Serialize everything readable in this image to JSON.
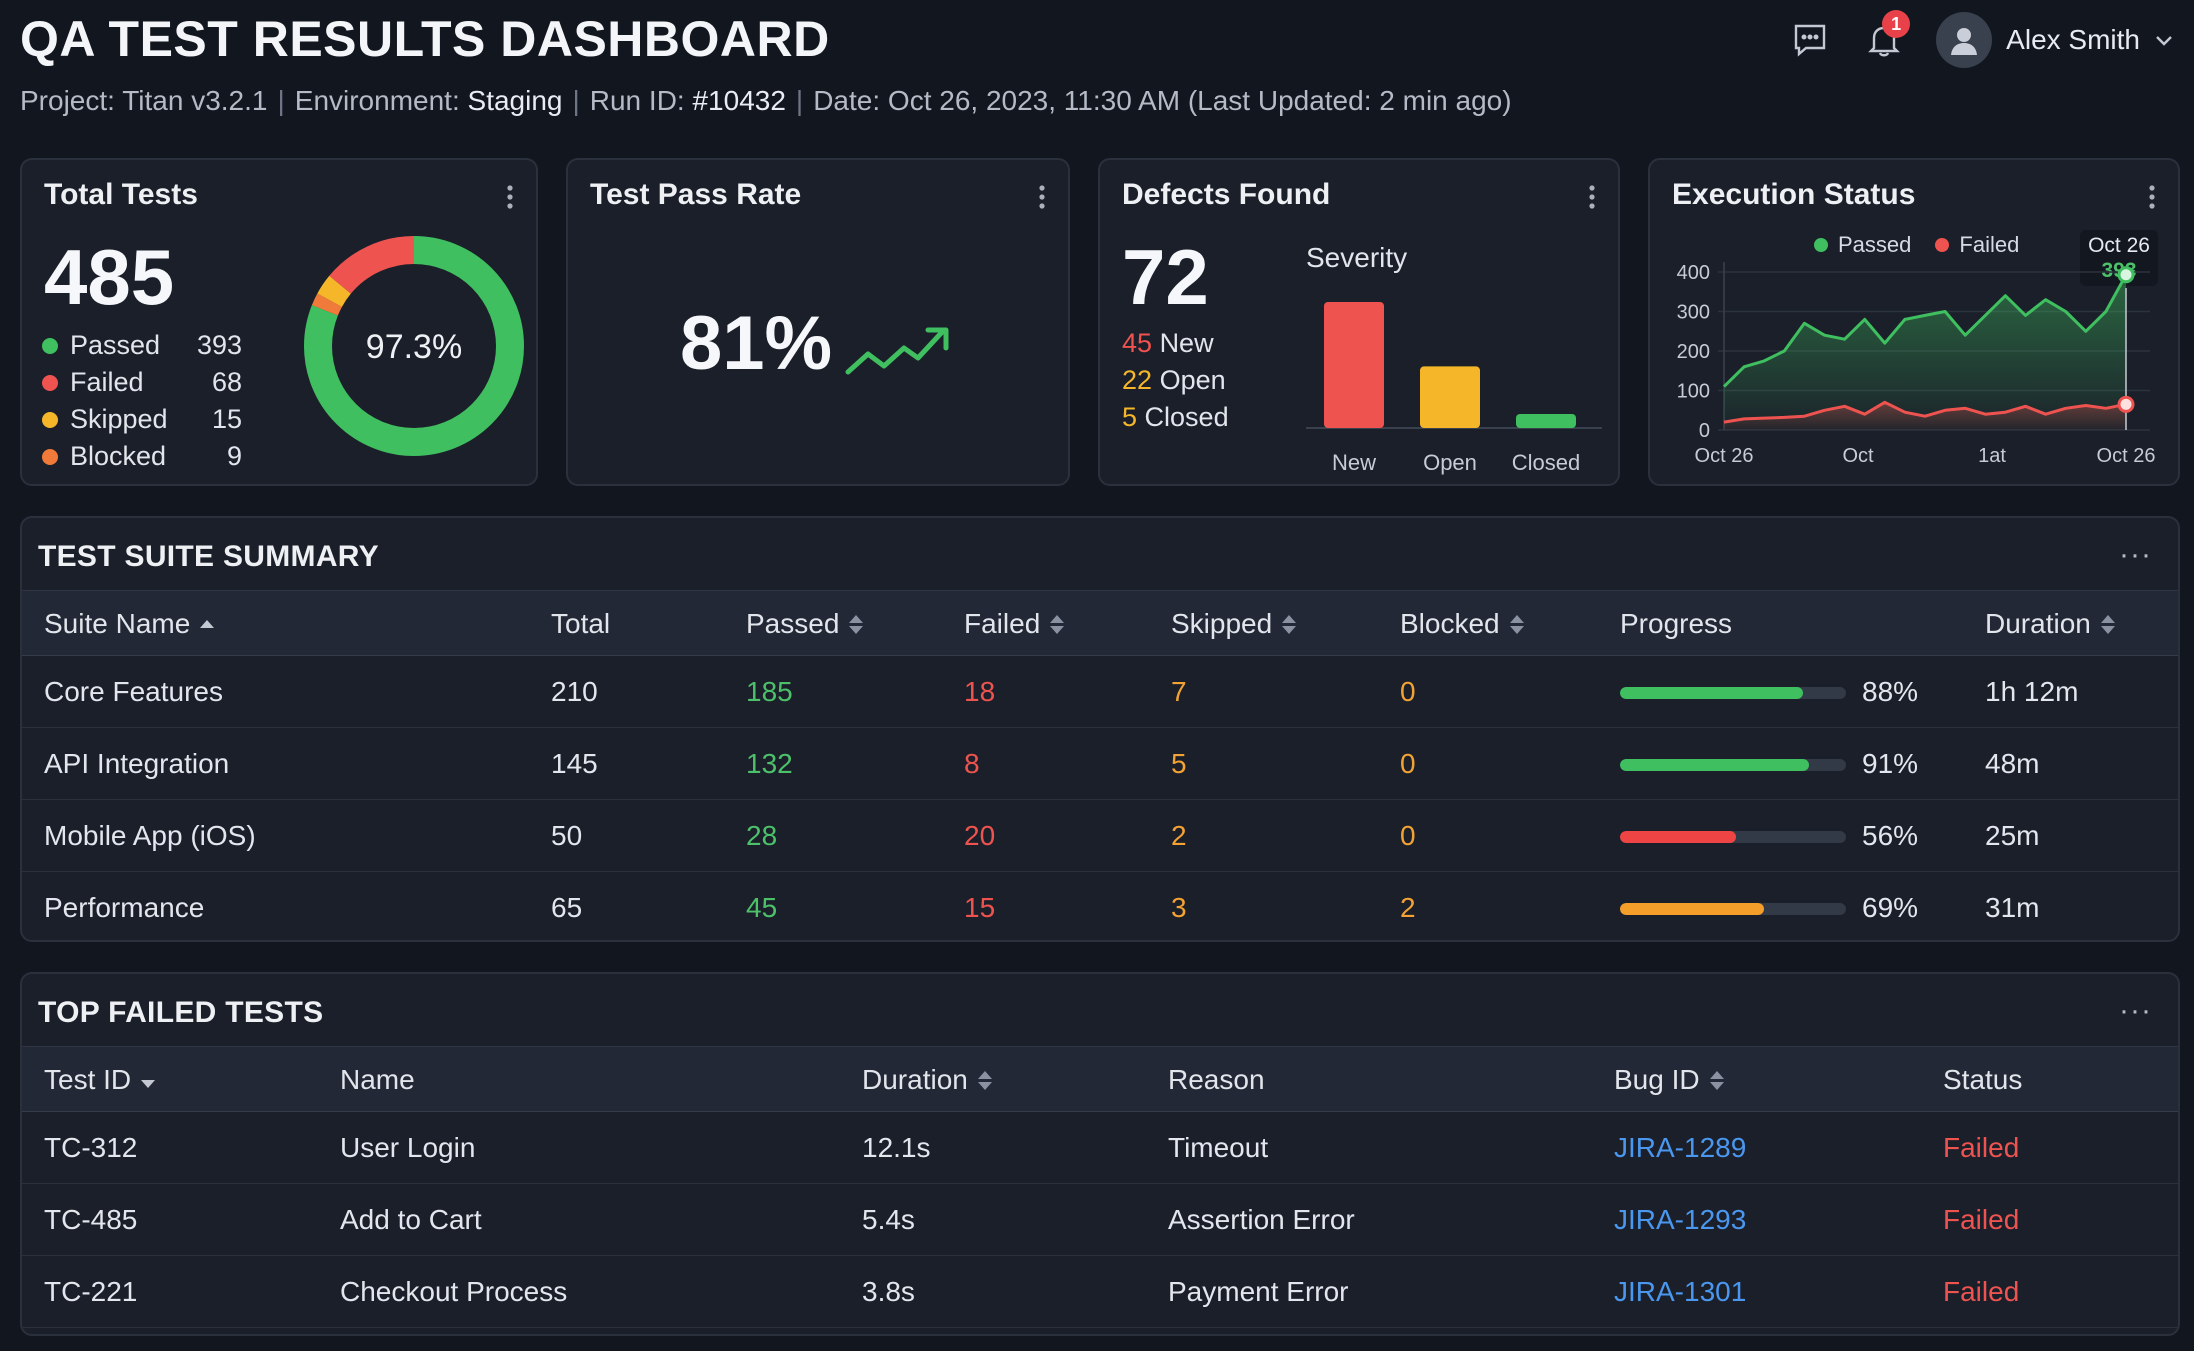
{
  "header": {
    "title": "QA TEST RESULTS DASHBOARD",
    "project_label": "Project:",
    "project": "Titan v3.2.1",
    "env_label": "Environment:",
    "environment": "Staging",
    "run_label": "Run ID:",
    "run_id": "#10432",
    "date_label": "Date:",
    "date": "Oct 26, 2023, 11:30 AM (Last Updated: 2 min ago)",
    "notification_count": "1",
    "user_name": "Alex Smith",
    "icons": [
      "chat-icon",
      "bell-icon",
      "user-avatar-icon",
      "chevron-down-icon"
    ]
  },
  "colors": {
    "passed": "#3fbf5f",
    "failed": "#ef5350",
    "skipped": "#f5b62a",
    "blocked": "#f07a3a",
    "link": "#4b97ef"
  },
  "total_tests": {
    "title": "Total Tests",
    "total": "485",
    "donut_label": "97.3%",
    "items": [
      {
        "label": "Passed",
        "value": "393"
      },
      {
        "label": "Failed",
        "value": "68"
      },
      {
        "label": "Skipped",
        "value": "15"
      },
      {
        "label": "Blocked",
        "value": "9"
      }
    ]
  },
  "pass_rate": {
    "title": "Test Pass Rate",
    "value": "81%"
  },
  "defects": {
    "title": "Defects Found",
    "total": "72",
    "chart_title": "Severity",
    "items": [
      {
        "count": "45",
        "label": "New"
      },
      {
        "count": "22",
        "label": "Open"
      },
      {
        "count": "5",
        "label": "Closed"
      }
    ]
  },
  "execution": {
    "title": "Execution Status",
    "legend_passed": "Passed",
    "legend_failed": "Failed",
    "tooltip_date": "Oct 26",
    "tooltip_value": "393"
  },
  "chart_data": [
    {
      "type": "pie",
      "categories": [
        "Passed",
        "Failed",
        "Skipped",
        "Blocked"
      ],
      "values": [
        393,
        68,
        15,
        9
      ],
      "center_label": "97.3%"
    },
    {
      "type": "bar",
      "title": "Severity",
      "categories": [
        "New",
        "Open",
        "Closed"
      ],
      "values": [
        45,
        22,
        5
      ],
      "ylim": [
        0,
        50
      ]
    },
    {
      "type": "line",
      "x_tick_labels": [
        "Oct 26",
        "Oct",
        "1at",
        "Oct 26"
      ],
      "y_ticks": [
        0,
        100,
        200,
        300,
        400
      ],
      "ylim": [
        0,
        400
      ],
      "grid": true,
      "legend": "top",
      "series": [
        {
          "name": "Passed",
          "values": [
            110,
            160,
            175,
            200,
            270,
            240,
            230,
            280,
            220,
            280,
            290,
            300,
            240,
            290,
            340,
            290,
            330,
            300,
            250,
            300,
            393
          ]
        },
        {
          "name": "Failed",
          "values": [
            20,
            28,
            30,
            32,
            35,
            50,
            60,
            40,
            70,
            45,
            35,
            50,
            55,
            40,
            45,
            60,
            40,
            55,
            62,
            55,
            65
          ]
        }
      ]
    }
  ],
  "suite_summary": {
    "title": "TEST SUITE SUMMARY",
    "more": "···",
    "columns": [
      "Suite Name",
      "Total",
      "Passed",
      "Failed",
      "Skipped",
      "Blocked",
      "Progress",
      "Duration"
    ],
    "rows": [
      {
        "name": "Core Features",
        "total": "210",
        "passed": "185",
        "failed": "18",
        "skipped": "7",
        "blocked": "0",
        "progress": 0.88,
        "progress_label": "88%",
        "duration": "1h 12m",
        "bar_color": "#3fbf5f"
      },
      {
        "name": "API Integration",
        "total": "145",
        "passed": "132",
        "failed": "8",
        "skipped": "5",
        "blocked": "0",
        "progress": 0.91,
        "progress_label": "91%",
        "duration": "48m",
        "bar_color": "#3fbf5f"
      },
      {
        "name": "Mobile App (iOS)",
        "total": "50",
        "passed": "28",
        "failed": "20",
        "skipped": "2",
        "blocked": "0",
        "progress": 0.56,
        "progress_label": "56%",
        "duration": "25m",
        "bar_color": "#ef4444"
      },
      {
        "name": "Performance",
        "total": "65",
        "passed": "45",
        "failed": "15",
        "skipped": "3",
        "blocked": "2",
        "progress": 0.69,
        "progress_label": "69%",
        "duration": "31m",
        "bar_color": "#f59e2a"
      }
    ]
  },
  "failed_tests": {
    "title": "TOP FAILED TESTS",
    "more": "···",
    "columns": [
      "Test ID",
      "Name",
      "Duration",
      "Reason",
      "Bug ID",
      "Status"
    ],
    "rows": [
      {
        "id": "TC-312",
        "name": "User Login",
        "duration": "12.1s",
        "reason": "Timeout",
        "bug": "JIRA-1289",
        "status": "Failed"
      },
      {
        "id": "TC-485",
        "name": "Add to Cart",
        "duration": "5.4s",
        "reason": "Assertion Error",
        "bug": "JIRA-1293",
        "status": "Failed"
      },
      {
        "id": "TC-221",
        "name": "Checkout Process",
        "duration": "3.8s",
        "reason": "Payment Error",
        "bug": "JIRA-1301",
        "status": "Failed"
      }
    ]
  }
}
